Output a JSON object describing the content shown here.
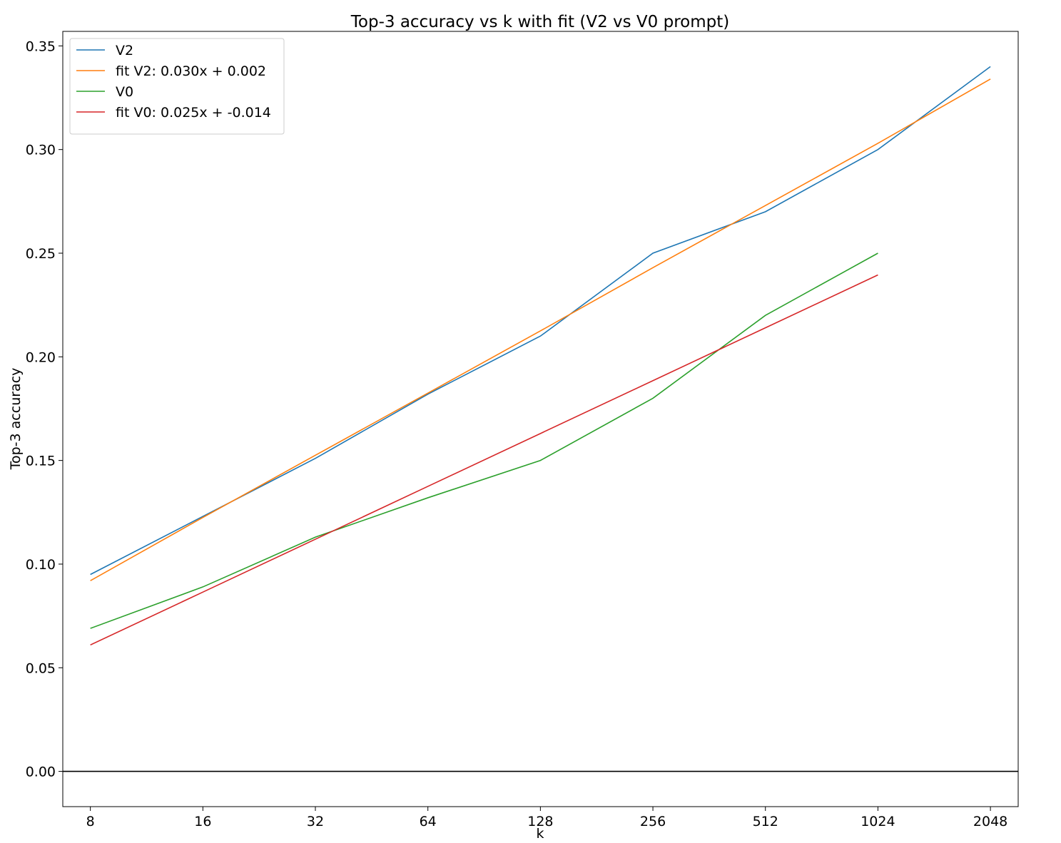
{
  "chart_data": {
    "type": "line",
    "title": "Top-3 accuracy vs k with fit (V2 vs V0 prompt)",
    "xlabel": "k",
    "ylabel": "Top-3 accuracy",
    "x_scale": "log2",
    "x": [
      8,
      16,
      32,
      64,
      128,
      256,
      512,
      1024,
      2048
    ],
    "x_tick_labels": [
      "8",
      "16",
      "32",
      "64",
      "128",
      "256",
      "512",
      "1024",
      "2048"
    ],
    "ylim": [
      -0.017,
      0.357
    ],
    "y_ticks": [
      0.0,
      0.05,
      0.1,
      0.15,
      0.2,
      0.25,
      0.3,
      0.35
    ],
    "y_tick_labels": [
      "0.00",
      "0.05",
      "0.10",
      "0.15",
      "0.20",
      "0.25",
      "0.30",
      "0.35"
    ],
    "horizontal_reference_line": {
      "y": 0.0,
      "color": "#000000"
    },
    "grid": false,
    "legend_position": "top-left",
    "series": [
      {
        "name": "V2",
        "color": "#1f77b4",
        "x": [
          8,
          16,
          32,
          64,
          128,
          256,
          512,
          1024,
          2048
        ],
        "values": [
          0.095,
          0.123,
          0.151,
          0.182,
          0.21,
          0.25,
          0.27,
          0.3,
          0.34
        ]
      },
      {
        "name": "fit V2: 0.030x + 0.002",
        "color": "#ff7f0e",
        "x": [
          8,
          16,
          32,
          64,
          128,
          256,
          512,
          1024,
          2048
        ],
        "values": [
          0.092,
          0.1225,
          0.1525,
          0.1825,
          0.2125,
          0.243,
          0.273,
          0.303,
          0.334
        ]
      },
      {
        "name": "V0",
        "color": "#2ca02c",
        "x": [
          8,
          16,
          32,
          64,
          128,
          256,
          512,
          1024
        ],
        "values": [
          0.069,
          0.089,
          0.113,
          0.132,
          0.15,
          0.18,
          0.22,
          0.25
        ]
      },
      {
        "name": "fit V0: 0.025x + -0.014",
        "color": "#d62728",
        "x": [
          8,
          16,
          32,
          64,
          128,
          256,
          512,
          1024
        ],
        "values": [
          0.061,
          0.0865,
          0.112,
          0.1375,
          0.163,
          0.1885,
          0.214,
          0.2395
        ]
      }
    ]
  }
}
